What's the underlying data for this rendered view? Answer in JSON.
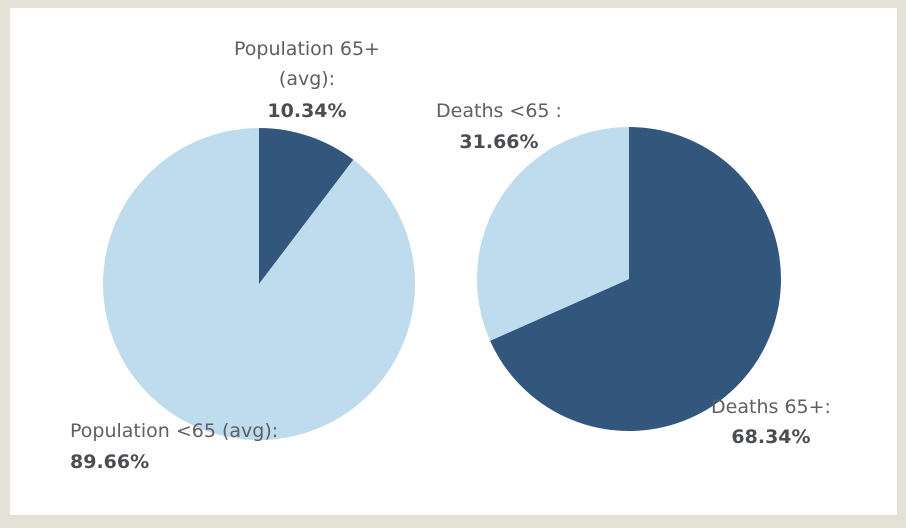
{
  "colors": {
    "dark": "#33567d",
    "light": "#bfdbee",
    "frame": "#e4e1d7"
  },
  "chart_data": [
    {
      "type": "pie",
      "slices": [
        {
          "label": "Population 65+ (avg):",
          "label_lines": [
            "Population 65+",
            "(avg):"
          ],
          "value": 10.34,
          "value_text": "10.34%",
          "color": "#33567d"
        },
        {
          "label": "Population <65 (avg):",
          "label_lines": [
            "Population <65 (avg):"
          ],
          "value": 89.66,
          "value_text": "89.66%",
          "color": "#bfdbee"
        }
      ]
    },
    {
      "type": "pie",
      "slices": [
        {
          "label": "Deaths 65+:",
          "label_lines": [
            "Deaths 65+:"
          ],
          "value": 68.34,
          "value_text": "68.34%",
          "color": "#33567d"
        },
        {
          "label": "Deaths <65 :",
          "label_lines": [
            "Deaths <65 :"
          ],
          "value": 31.66,
          "value_text": "31.66%",
          "color": "#bfdbee"
        }
      ]
    }
  ]
}
